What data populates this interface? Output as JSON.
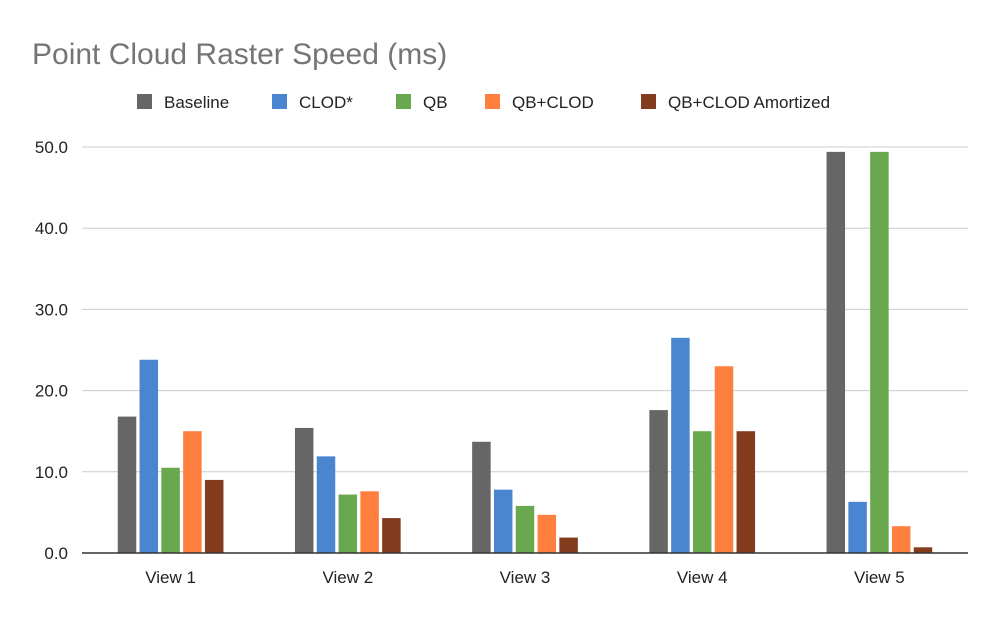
{
  "chart_data": {
    "type": "bar",
    "title": "Point Cloud Raster Speed (ms)",
    "xlabel": "",
    "ylabel": "",
    "categories": [
      "View 1",
      "View 2",
      "View 3",
      "View 4",
      "View 5"
    ],
    "ylim": [
      0,
      50
    ],
    "yticks": [
      "0.0",
      "10.0",
      "20.0",
      "30.0",
      "40.0",
      "50.0"
    ],
    "grid": true,
    "legend_position": "top",
    "series": [
      {
        "name": "Baseline",
        "color": "#666666",
        "values": [
          16.8,
          15.4,
          13.7,
          17.6,
          49.4
        ]
      },
      {
        "name": "CLOD*",
        "color": "#4a86cf",
        "values": [
          23.8,
          11.9,
          7.8,
          26.5,
          6.3
        ]
      },
      {
        "name": "QB",
        "color": "#6aa84f",
        "values": [
          10.5,
          7.2,
          5.8,
          15.0,
          49.4
        ]
      },
      {
        "name": "QB+CLOD",
        "color": "#ff7f3f",
        "values": [
          15.0,
          7.6,
          4.7,
          23.0,
          3.3
        ]
      },
      {
        "name": "QB+CLOD Amortized",
        "color": "#843c1f",
        "values": [
          9.0,
          4.3,
          1.9,
          15.0,
          0.7
        ]
      }
    ]
  }
}
